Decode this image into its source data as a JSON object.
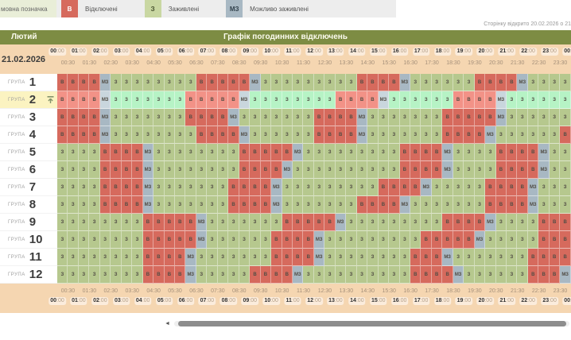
{
  "legend": {
    "label": "мовна позначка",
    "items": [
      {
        "code": "В",
        "label": "Відключені",
        "color": "#d66a5d"
      },
      {
        "code": "З",
        "label": "Заживлені",
        "color": "#c9d7a2"
      },
      {
        "code": "МЗ",
        "label": "Можливо заживлені",
        "color": "#a8b8c3"
      }
    ]
  },
  "page_info": "Сторінку відкрито 20.02.2026 о 21",
  "header": {
    "month": "Лютий",
    "title": "Графік погодинних відключень",
    "date": "21.02.2026"
  },
  "groups_label": "ГРУПА",
  "time_axis": {
    "hours": [
      "00:00",
      "01:00",
      "02:00",
      "03:00",
      "04:00",
      "05:00",
      "06:00",
      "07:00",
      "08:00",
      "09:00",
      "10:00",
      "11:00",
      "12:00",
      "13:00",
      "14:00",
      "15:00",
      "16:00",
      "17:00",
      "18:00",
      "19:00",
      "20:00",
      "21:00",
      "22:00",
      "23:00",
      "00:00"
    ],
    "half_hours": [
      "00:30",
      "01:30",
      "02:30",
      "03:30",
      "04:30",
      "05:30",
      "06:30",
      "07:30",
      "08:30",
      "09:30",
      "10:30",
      "11:30",
      "12:30",
      "13:30",
      "14:30",
      "15:30",
      "16:30",
      "17:30",
      "18:30",
      "19:30",
      "20:30",
      "21:30",
      "22:30",
      "23:30"
    ]
  },
  "schedule": {
    "cell_colors": {
      "В": "#d66a5d",
      "З": "#b6c88e",
      "МЗ": "#a8b8c3"
    },
    "highlighted_colors": {
      "В": "#f29287",
      "З": "#b6f3c5",
      "МЗ": "#c9d6dd"
    },
    "rows": [
      {
        "group": "1",
        "highlighted": false,
        "cells": [
          "В",
          "В",
          "В",
          "В",
          "МЗ",
          "З",
          "З",
          "З",
          "З",
          "З",
          "З",
          "З",
          "З",
          "В",
          "В",
          "В",
          "В",
          "В",
          "МЗ",
          "З",
          "З",
          "З",
          "З",
          "З",
          "З",
          "З",
          "З",
          "З",
          "В",
          "В",
          "В",
          "В",
          "МЗ",
          "З",
          "З",
          "З",
          "З",
          "З",
          "З",
          "В",
          "В",
          "В",
          "В",
          "МЗ",
          "З",
          "З",
          "З",
          "З"
        ]
      },
      {
        "group": "2",
        "highlighted": true,
        "cells": [
          "В",
          "В",
          "В",
          "В",
          "МЗ",
          "З",
          "З",
          "З",
          "З",
          "З",
          "З",
          "З",
          "В",
          "В",
          "В",
          "В",
          "В",
          "МЗ",
          "З",
          "З",
          "З",
          "З",
          "З",
          "З",
          "З",
          "З",
          "В",
          "В",
          "В",
          "В",
          "МЗ",
          "З",
          "З",
          "З",
          "З",
          "З",
          "З",
          "В",
          "В",
          "В",
          "В",
          "МЗ",
          "З",
          "З",
          "З",
          "З",
          "З",
          "З"
        ]
      },
      {
        "group": "3",
        "highlighted": false,
        "cells": [
          "В",
          "В",
          "В",
          "В",
          "МЗ",
          "З",
          "З",
          "З",
          "З",
          "З",
          "З",
          "З",
          "В",
          "В",
          "В",
          "В",
          "МЗ",
          "З",
          "З",
          "З",
          "З",
          "З",
          "З",
          "З",
          "В",
          "В",
          "В",
          "В",
          "МЗ",
          "З",
          "З",
          "З",
          "З",
          "З",
          "З",
          "З",
          "В",
          "В",
          "В",
          "В",
          "В",
          "МЗ",
          "З",
          "З",
          "З",
          "З",
          "З",
          "З"
        ]
      },
      {
        "group": "4",
        "highlighted": false,
        "cells": [
          "В",
          "В",
          "В",
          "В",
          "МЗ",
          "З",
          "З",
          "З",
          "З",
          "З",
          "З",
          "З",
          "З",
          "В",
          "В",
          "В",
          "В",
          "МЗ",
          "З",
          "З",
          "З",
          "З",
          "З",
          "З",
          "В",
          "В",
          "В",
          "В",
          "МЗ",
          "З",
          "З",
          "З",
          "З",
          "З",
          "З",
          "З",
          "В",
          "В",
          "В",
          "В",
          "МЗ",
          "З",
          "З",
          "З",
          "З",
          "З",
          "З",
          "В"
        ]
      },
      {
        "group": "5",
        "highlighted": false,
        "cells": [
          "З",
          "З",
          "З",
          "З",
          "В",
          "В",
          "В",
          "В",
          "МЗ",
          "З",
          "З",
          "З",
          "З",
          "З",
          "З",
          "З",
          "З",
          "В",
          "В",
          "В",
          "В",
          "В",
          "МЗ",
          "З",
          "З",
          "З",
          "З",
          "З",
          "З",
          "З",
          "З",
          "З",
          "В",
          "В",
          "В",
          "В",
          "МЗ",
          "З",
          "З",
          "З",
          "З",
          "В",
          "В",
          "В",
          "В",
          "МЗ",
          "З",
          "З"
        ]
      },
      {
        "group": "6",
        "highlighted": false,
        "cells": [
          "З",
          "З",
          "З",
          "З",
          "В",
          "В",
          "В",
          "В",
          "МЗ",
          "З",
          "З",
          "З",
          "З",
          "З",
          "З",
          "З",
          "З",
          "В",
          "В",
          "В",
          "В",
          "МЗ",
          "З",
          "З",
          "З",
          "З",
          "З",
          "З",
          "З",
          "З",
          "З",
          "З",
          "В",
          "В",
          "В",
          "В",
          "МЗ",
          "З",
          "З",
          "З",
          "З",
          "В",
          "В",
          "В",
          "В",
          "МЗ",
          "З",
          "З"
        ]
      },
      {
        "group": "7",
        "highlighted": false,
        "cells": [
          "З",
          "З",
          "З",
          "З",
          "В",
          "В",
          "В",
          "В",
          "МЗ",
          "З",
          "З",
          "З",
          "З",
          "З",
          "З",
          "З",
          "В",
          "В",
          "В",
          "В",
          "МЗ",
          "З",
          "З",
          "З",
          "З",
          "З",
          "З",
          "З",
          "З",
          "З",
          "В",
          "В",
          "В",
          "В",
          "МЗ",
          "З",
          "З",
          "З",
          "З",
          "З",
          "В",
          "В",
          "В",
          "В",
          "МЗ",
          "З",
          "З",
          "З"
        ]
      },
      {
        "group": "8",
        "highlighted": false,
        "cells": [
          "З",
          "З",
          "З",
          "З",
          "В",
          "В",
          "В",
          "В",
          "МЗ",
          "З",
          "З",
          "З",
          "З",
          "З",
          "З",
          "З",
          "В",
          "В",
          "В",
          "В",
          "МЗ",
          "З",
          "З",
          "З",
          "З",
          "З",
          "З",
          "З",
          "В",
          "В",
          "В",
          "В",
          "МЗ",
          "З",
          "З",
          "З",
          "З",
          "З",
          "З",
          "З",
          "В",
          "В",
          "В",
          "В",
          "МЗ",
          "З",
          "З",
          "З"
        ]
      },
      {
        "group": "9",
        "highlighted": false,
        "cells": [
          "З",
          "З",
          "З",
          "З",
          "З",
          "З",
          "З",
          "З",
          "В",
          "В",
          "В",
          "В",
          "В",
          "МЗ",
          "З",
          "З",
          "З",
          "З",
          "З",
          "З",
          "З",
          "В",
          "В",
          "В",
          "В",
          "В",
          "МЗ",
          "З",
          "З",
          "З",
          "З",
          "З",
          "З",
          "З",
          "З",
          "З",
          "В",
          "В",
          "В",
          "В",
          "МЗ",
          "З",
          "З",
          "З",
          "З",
          "В",
          "В",
          "В"
        ]
      },
      {
        "group": "10",
        "highlighted": false,
        "cells": [
          "З",
          "З",
          "З",
          "З",
          "З",
          "З",
          "З",
          "З",
          "В",
          "В",
          "В",
          "В",
          "В",
          "МЗ",
          "З",
          "З",
          "З",
          "З",
          "З",
          "З",
          "В",
          "В",
          "В",
          "В",
          "МЗ",
          "З",
          "З",
          "З",
          "З",
          "З",
          "З",
          "З",
          "З",
          "З",
          "В",
          "В",
          "В",
          "В",
          "В",
          "МЗ",
          "З",
          "З",
          "З",
          "З",
          "З",
          "В",
          "В",
          "В"
        ]
      },
      {
        "group": "11",
        "highlighted": false,
        "cells": [
          "З",
          "З",
          "З",
          "З",
          "З",
          "З",
          "З",
          "З",
          "В",
          "В",
          "В",
          "В",
          "МЗ",
          "З",
          "З",
          "З",
          "З",
          "З",
          "З",
          "З",
          "В",
          "В",
          "В",
          "В",
          "МЗ",
          "З",
          "З",
          "З",
          "З",
          "З",
          "З",
          "З",
          "З",
          "В",
          "В",
          "В",
          "МЗ",
          "З",
          "З",
          "З",
          "З",
          "З",
          "З",
          "З",
          "В",
          "В",
          "В",
          "В"
        ]
      },
      {
        "group": "12",
        "highlighted": false,
        "cells": [
          "З",
          "З",
          "З",
          "З",
          "З",
          "З",
          "З",
          "З",
          "В",
          "В",
          "В",
          "В",
          "МЗ",
          "З",
          "З",
          "З",
          "З",
          "З",
          "В",
          "В",
          "В",
          "В",
          "МЗ",
          "З",
          "З",
          "З",
          "З",
          "З",
          "З",
          "З",
          "З",
          "З",
          "З",
          "В",
          "В",
          "В",
          "В",
          "МЗ",
          "З",
          "З",
          "З",
          "З",
          "З",
          "З",
          "В",
          "В",
          "В",
          "МЗ"
        ]
      }
    ]
  }
}
